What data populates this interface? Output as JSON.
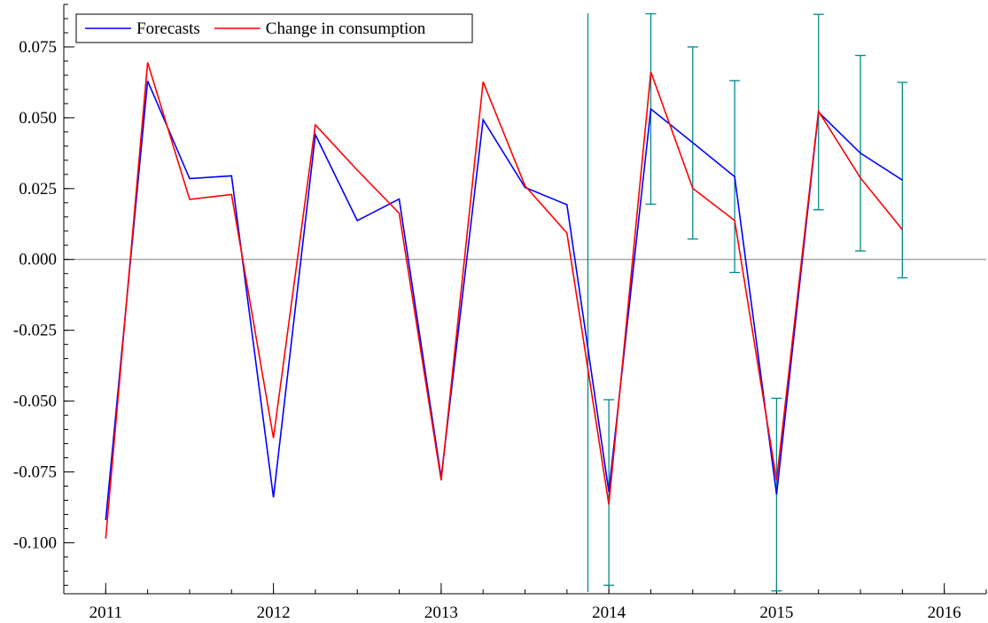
{
  "chart_data": {
    "type": "line",
    "title": "",
    "xlabel": "",
    "ylabel": "",
    "xlim": [
      2010.75,
      2016.25
    ],
    "ylim": [
      -0.118,
      0.09
    ],
    "x_ticks": [
      2011,
      2012,
      2013,
      2014,
      2015,
      2016
    ],
    "x_tick_labels": [
      "2011",
      "2012",
      "2013",
      "2014",
      "2015",
      "2016"
    ],
    "y_ticks": [
      -0.1,
      -0.075,
      -0.05,
      -0.025,
      0.0,
      0.025,
      0.05,
      0.075
    ],
    "y_tick_labels": [
      "-0.100",
      "-0.075",
      "-0.050",
      "-0.025",
      "0.000",
      "0.025",
      "0.050",
      "0.075"
    ],
    "grid": false,
    "zero_line": true,
    "legend_position": "top-left",
    "forecast_start_marker": 2013.875,
    "series": [
      {
        "name": "Forecasts",
        "color": "#0000ff",
        "x": [
          2011.0,
          2011.25,
          2011.5,
          2011.75,
          2012.0,
          2012.25,
          2012.5,
          2012.75,
          2013.0,
          2013.25,
          2013.5,
          2013.75,
          2014.0,
          2014.25,
          2014.5,
          2014.75,
          2015.0,
          2015.25,
          2015.5,
          2015.75
        ],
        "values": [
          -0.092,
          0.063,
          0.0285,
          0.0295,
          -0.084,
          0.044,
          0.0137,
          0.0213,
          -0.077,
          0.0493,
          0.0254,
          0.0193,
          -0.082,
          0.0531,
          0.0412,
          0.0292,
          -0.083,
          0.052,
          0.0375,
          0.028
        ]
      },
      {
        "name": "Change in consumption",
        "color": "#ff0000",
        "x": [
          2011.0,
          2011.25,
          2011.5,
          2011.75,
          2012.0,
          2012.25,
          2012.5,
          2012.75,
          2013.0,
          2013.25,
          2013.5,
          2013.75,
          2014.0,
          2014.25,
          2014.5,
          2014.75,
          2015.0,
          2015.25,
          2015.5,
          2015.75
        ],
        "values": [
          -0.0985,
          0.0695,
          0.0212,
          0.0229,
          -0.063,
          0.0475,
          0.0315,
          0.0163,
          -0.078,
          0.0627,
          0.026,
          0.0093,
          -0.0865,
          0.0662,
          0.0251,
          0.0137,
          -0.078,
          0.0523,
          0.0288,
          0.0105
        ]
      }
    ],
    "error_bars": {
      "color": "#008b8b",
      "x": [
        2014.0,
        2014.25,
        2014.5,
        2014.75,
        2015.0,
        2015.25,
        2015.5,
        2015.75
      ],
      "low": [
        -0.115,
        0.0195,
        0.0072,
        -0.0046,
        -0.117,
        0.0175,
        0.003,
        -0.0065
      ],
      "high": [
        -0.0495,
        0.0867,
        0.075,
        0.0631,
        -0.049,
        0.0865,
        0.072,
        0.0625
      ]
    }
  }
}
